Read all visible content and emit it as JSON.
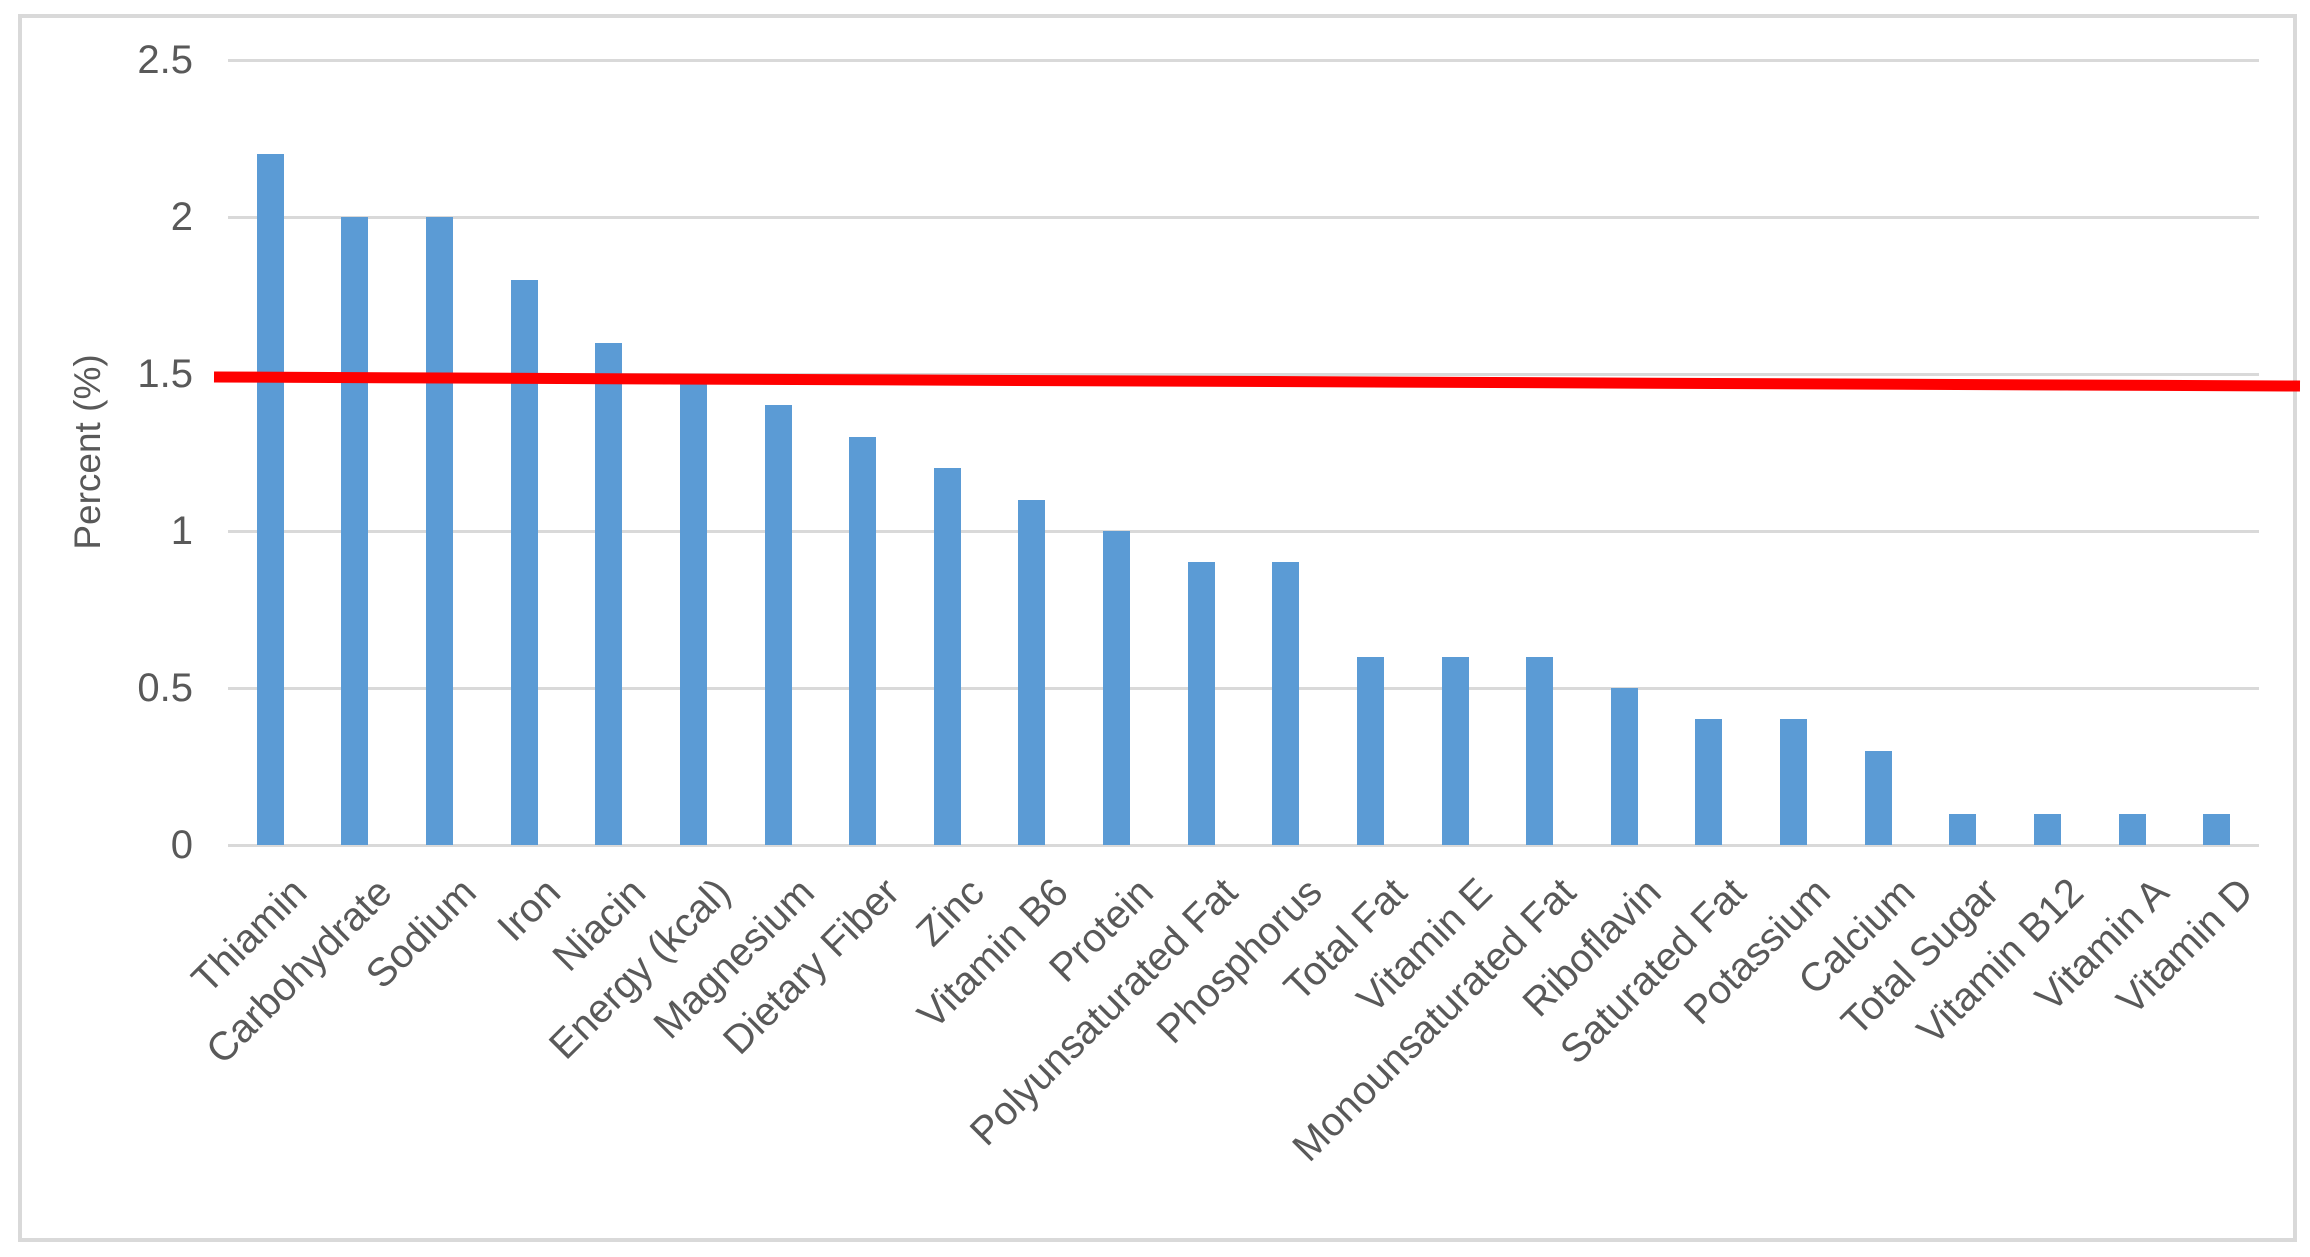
{
  "chart_data": {
    "type": "bar",
    "title": "",
    "xlabel": "",
    "ylabel": "Percent (%)",
    "ylim": [
      0,
      2.5
    ],
    "yticks": [
      0,
      0.5,
      1,
      1.5,
      2,
      2.5
    ],
    "grid": true,
    "legend": false,
    "bar_color": "#5b9bd5",
    "categories": [
      "Thiamin",
      "Carbohydrate",
      "Sodium",
      "Iron",
      "Niacin",
      "Energy (kcal)",
      "Magnesium",
      "Dietary Fiber",
      "Zinc",
      "Vitamin B6",
      "Protein",
      "Polyunsaturated Fat",
      "Phosphorus",
      "Total Fat",
      "Vitamin E",
      "Monounsaturated Fat",
      "Riboflavin",
      "Saturated Fat",
      "Potassium",
      "Calcium",
      "Total Sugar",
      "Vitamin B12",
      "Vitamin A",
      "Vitamin D"
    ],
    "values": [
      2.2,
      2.0,
      2.0,
      1.8,
      1.6,
      1.5,
      1.4,
      1.3,
      1.2,
      1.1,
      1.0,
      0.9,
      0.9,
      0.6,
      0.6,
      0.6,
      0.5,
      0.4,
      0.4,
      0.3,
      0.1,
      0.1,
      0.1,
      0.1
    ],
    "reference_line": {
      "value": 1.5,
      "color": "#ff0000"
    }
  },
  "colors": {
    "bar": "#5b9bd5",
    "gridline": "#d9d9d9",
    "frame_border": "#d9d9d9",
    "text": "#595959",
    "reference_line": "#ff0000",
    "background": "#ffffff"
  }
}
